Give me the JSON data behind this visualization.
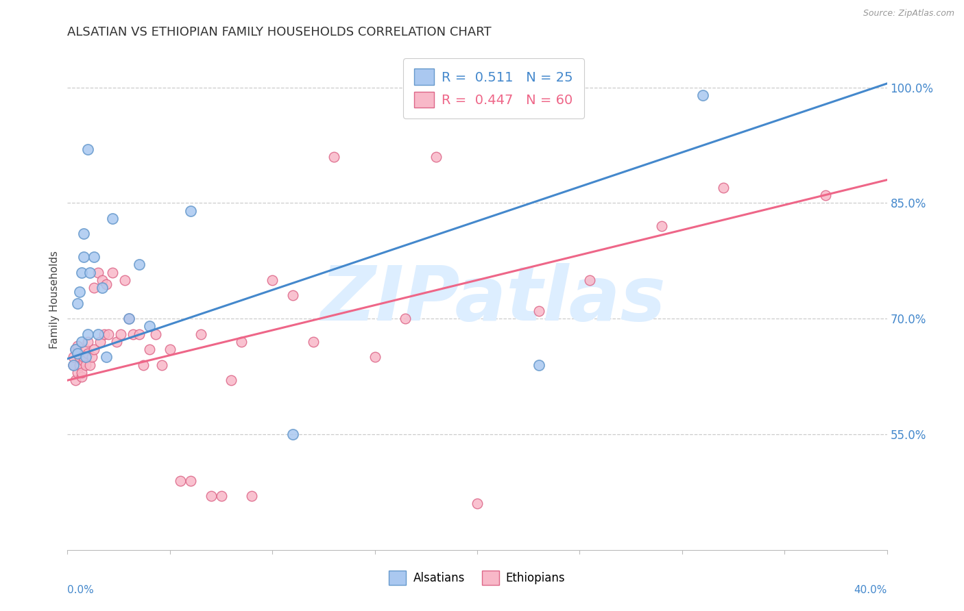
{
  "title": "ALSATIAN VS ETHIOPIAN FAMILY HOUSEHOLDS CORRELATION CHART",
  "source": "Source: ZipAtlas.com",
  "ylabel": "Family Households",
  "yticks": [
    55.0,
    70.0,
    85.0,
    100.0
  ],
  "xmin": 0.0,
  "xmax": 0.4,
  "ymin": 0.4,
  "ymax": 1.05,
  "legend_r_alsatians": "R =  0.511",
  "legend_n_alsatians": "N = 25",
  "legend_r_ethiopians": "R =  0.447",
  "legend_n_ethiopians": "N = 60",
  "alsatian_color": "#aac8f0",
  "ethiopian_color": "#f8b8c8",
  "alsatian_edge_color": "#6699cc",
  "ethiopian_edge_color": "#dd6688",
  "alsatian_line_color": "#4488cc",
  "ethiopian_line_color": "#ee6688",
  "watermark_color": "#ddeeff",
  "alsatians_x": [
    0.003,
    0.004,
    0.005,
    0.005,
    0.006,
    0.007,
    0.007,
    0.008,
    0.008,
    0.009,
    0.01,
    0.01,
    0.011,
    0.013,
    0.015,
    0.017,
    0.019,
    0.022,
    0.03,
    0.035,
    0.04,
    0.06,
    0.11,
    0.23,
    0.31
  ],
  "alsatians_y": [
    0.64,
    0.66,
    0.655,
    0.72,
    0.735,
    0.76,
    0.67,
    0.78,
    0.81,
    0.65,
    0.68,
    0.92,
    0.76,
    0.78,
    0.68,
    0.74,
    0.65,
    0.83,
    0.7,
    0.77,
    0.69,
    0.84,
    0.55,
    0.64,
    0.99
  ],
  "ethiopians_x": [
    0.003,
    0.003,
    0.004,
    0.004,
    0.005,
    0.005,
    0.005,
    0.006,
    0.006,
    0.007,
    0.007,
    0.008,
    0.008,
    0.009,
    0.009,
    0.01,
    0.01,
    0.011,
    0.012,
    0.013,
    0.013,
    0.015,
    0.016,
    0.017,
    0.018,
    0.019,
    0.02,
    0.022,
    0.024,
    0.026,
    0.028,
    0.03,
    0.032,
    0.035,
    0.037,
    0.04,
    0.043,
    0.046,
    0.05,
    0.055,
    0.06,
    0.065,
    0.07,
    0.075,
    0.08,
    0.085,
    0.09,
    0.1,
    0.11,
    0.12,
    0.13,
    0.15,
    0.165,
    0.18,
    0.2,
    0.23,
    0.255,
    0.29,
    0.32,
    0.37
  ],
  "ethiopians_y": [
    0.64,
    0.65,
    0.62,
    0.66,
    0.63,
    0.655,
    0.665,
    0.64,
    0.65,
    0.625,
    0.63,
    0.645,
    0.65,
    0.64,
    0.66,
    0.655,
    0.67,
    0.64,
    0.65,
    0.66,
    0.74,
    0.76,
    0.67,
    0.75,
    0.68,
    0.745,
    0.68,
    0.76,
    0.67,
    0.68,
    0.75,
    0.7,
    0.68,
    0.68,
    0.64,
    0.66,
    0.68,
    0.64,
    0.66,
    0.49,
    0.49,
    0.68,
    0.47,
    0.47,
    0.62,
    0.67,
    0.47,
    0.75,
    0.73,
    0.67,
    0.91,
    0.65,
    0.7,
    0.91,
    0.46,
    0.71,
    0.75,
    0.82,
    0.87,
    0.86
  ],
  "alsatian_trend_x0": 0.0,
  "alsatian_trend_y0": 0.648,
  "alsatian_trend_x1": 0.4,
  "alsatian_trend_y1": 1.005,
  "ethiopian_trend_x0": 0.0,
  "ethiopian_trend_y0": 0.62,
  "ethiopian_trend_x1": 0.4,
  "ethiopian_trend_y1": 0.88
}
